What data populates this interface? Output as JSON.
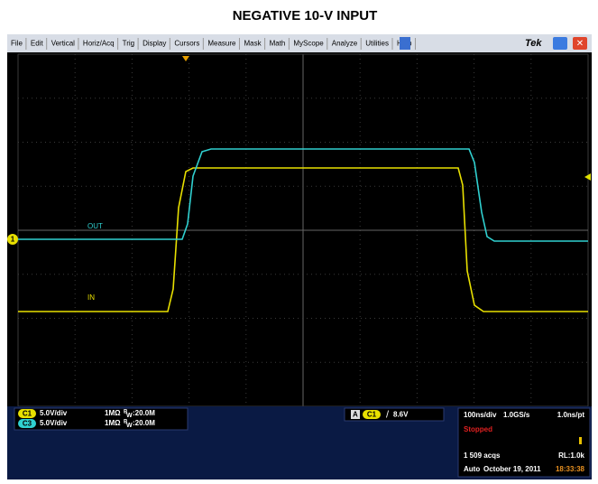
{
  "title": "NEGATIVE 10-V INPUT",
  "menu": [
    "File",
    "Edit",
    "Vertical",
    "Horiz/Acq",
    "Trig",
    "Display",
    "Cursors",
    "Measure",
    "Mask",
    "Math",
    "MyScope",
    "Analyze",
    "Utilities",
    "Help"
  ],
  "brand": "Tek",
  "traces": {
    "out_label": "OUT",
    "in_label": "IN",
    "marker": "1"
  },
  "channels": [
    {
      "name": "C1",
      "scale": "5.0V/div",
      "coupling": "1MΩ",
      "bw_symbol": "B",
      "bw_sub": "W",
      "bw": ":20.0M"
    },
    {
      "name": "C3",
      "scale": "5.0V/div",
      "coupling": "1MΩ",
      "bw_symbol": "B",
      "bw_sub": "W",
      "bw": ":20.0M"
    }
  ],
  "trigger": {
    "mode": "A",
    "source": "C1",
    "slope": "/",
    "level": "8.6V"
  },
  "acquisition": {
    "timebase": "100ns/div",
    "rate": "1.0GS/s",
    "resolution": "1.0ns/pt",
    "state": "Stopped",
    "acqs": "1 509 acqs",
    "record": "RL:1.0k",
    "mode": "Auto",
    "date": "October 19, 2011",
    "time": "18:33:38"
  }
}
